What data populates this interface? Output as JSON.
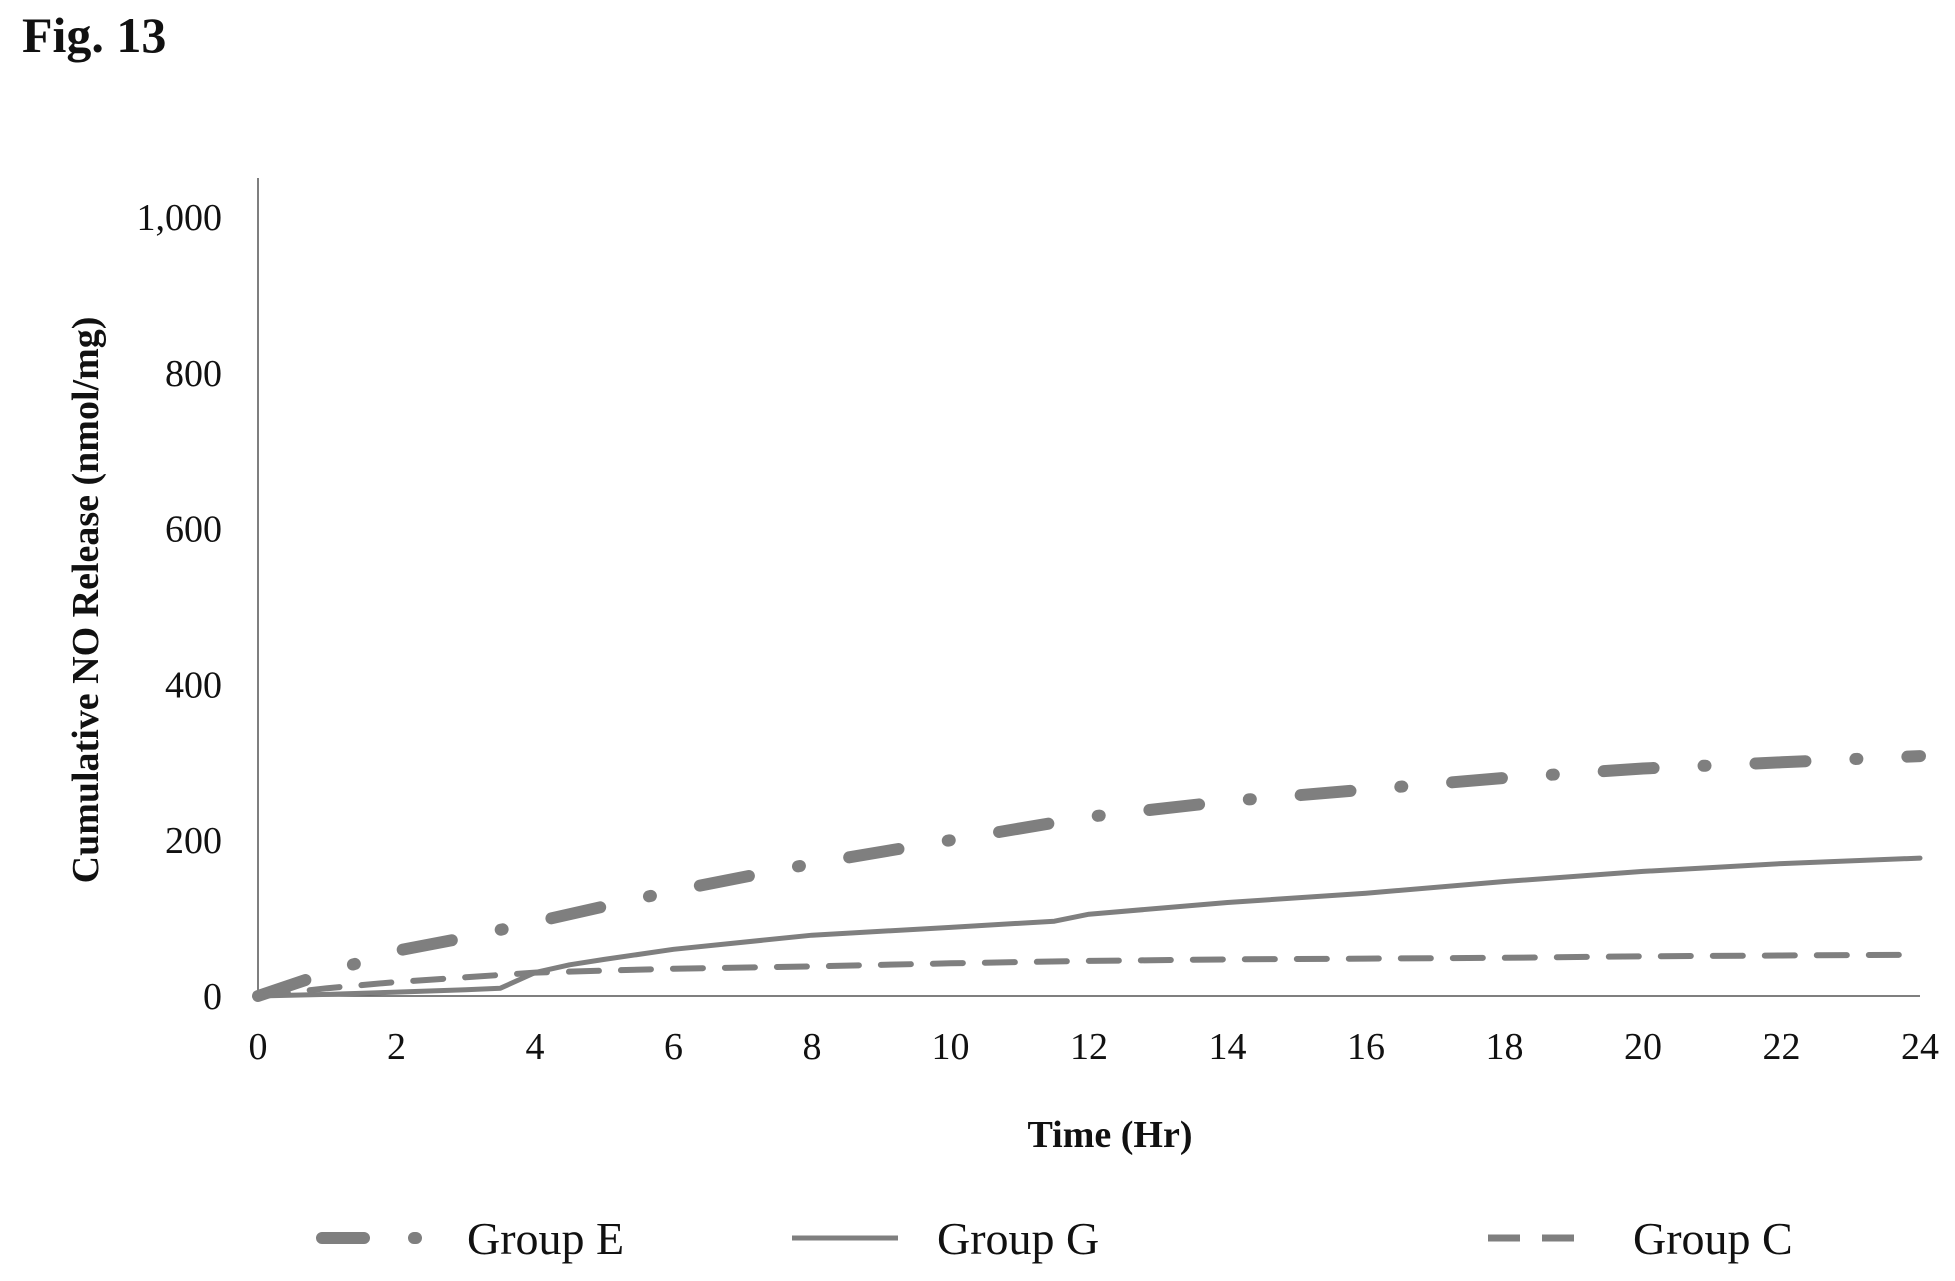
{
  "figure": {
    "title": "Fig. 13"
  },
  "chart_data": {
    "type": "line",
    "title": "",
    "xlabel": "Time (Hr)",
    "ylabel": "Cumulative NO Release (nmol/mg)",
    "xlim": [
      0,
      24
    ],
    "ylim": [
      0,
      1050
    ],
    "x_ticks": [
      0,
      2,
      4,
      6,
      8,
      10,
      12,
      14,
      16,
      18,
      20,
      22,
      24
    ],
    "x_tick_labels": [
      "0",
      "2",
      "4",
      "6",
      "8",
      "10",
      "12",
      "14",
      "16",
      "18",
      "20",
      "22",
      "24"
    ],
    "y_ticks": [
      0,
      200,
      400,
      600,
      800,
      1000
    ],
    "y_tick_labels": [
      "0",
      "200",
      "400",
      "600",
      "800",
      "1,000"
    ],
    "grid": false,
    "legend_position": "bottom",
    "series": [
      {
        "name": "Group E",
        "style": "dash-dot",
        "color": "#7f7f7f",
        "x": [
          0,
          1,
          2,
          3,
          4,
          6,
          8,
          10,
          12,
          14,
          16,
          18,
          20,
          22,
          24
        ],
        "y": [
          0,
          30,
          58,
          75,
          95,
          135,
          170,
          200,
          230,
          250,
          265,
          280,
          292,
          300,
          308
        ]
      },
      {
        "name": "Group G",
        "style": "solid",
        "color": "#7f7f7f",
        "x": [
          0,
          1,
          2,
          3,
          3.5,
          4,
          4.5,
          5,
          6,
          8,
          10,
          11.5,
          12,
          14,
          16,
          18,
          20,
          22,
          24
        ],
        "y": [
          0,
          2,
          5,
          8,
          10,
          30,
          40,
          47,
          60,
          78,
          88,
          96,
          105,
          120,
          132,
          147,
          160,
          170,
          177
        ]
      },
      {
        "name": "Group C",
        "style": "dashed",
        "color": "#7f7f7f",
        "x": [
          0,
          1,
          2,
          3,
          4,
          6,
          8,
          10,
          12,
          14,
          16,
          18,
          20,
          22,
          24
        ],
        "y": [
          0,
          10,
          18,
          24,
          30,
          35,
          38,
          42,
          45,
          47,
          48,
          49,
          51,
          52,
          53
        ]
      }
    ]
  }
}
